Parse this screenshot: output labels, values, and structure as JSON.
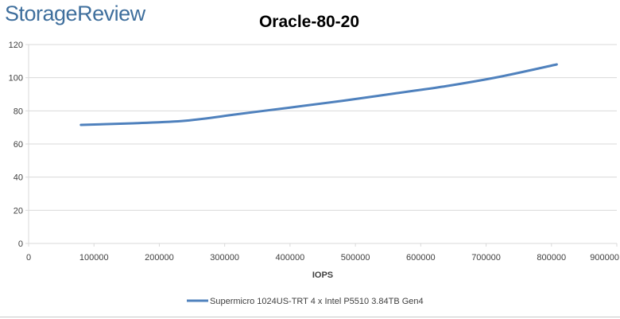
{
  "logo_text": "StorageReview",
  "chart_data": {
    "type": "line",
    "title": "Oracle-80-20",
    "xlabel": "IOPS",
    "ylabel": "",
    "xlim": [
      0,
      900000
    ],
    "ylim": [
      0,
      120
    ],
    "x_ticks": [
      0,
      100000,
      200000,
      300000,
      400000,
      500000,
      600000,
      700000,
      800000,
      900000
    ],
    "y_ticks": [
      0,
      20,
      40,
      60,
      80,
      100,
      120
    ],
    "grid": "horizontal",
    "legend_position": "bottom",
    "series": [
      {
        "name": "Supermicro 1024US-TRT 4 x Intel P5510 3.84TB Gen4",
        "color": "#4f81bd",
        "x": [
          80000,
          160000,
          240000,
          320000,
          400000,
          480000,
          560000,
          640000,
          720000,
          808000
        ],
        "y": [
          71.5,
          72.5,
          74,
          78,
          82,
          86,
          90.5,
          95,
          100.5,
          108
        ]
      }
    ]
  }
}
